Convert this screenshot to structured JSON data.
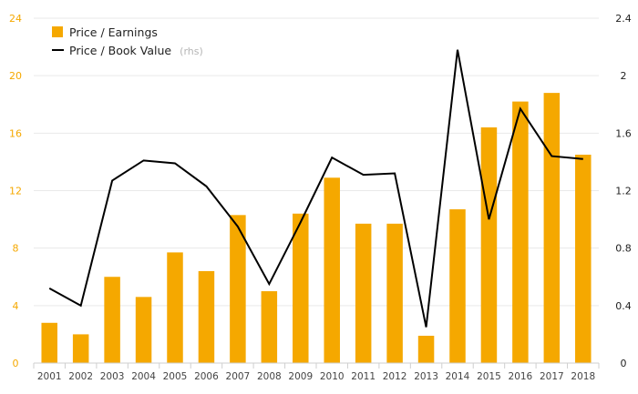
{
  "chart_data": {
    "type": "bar",
    "categories": [
      "2001",
      "2002",
      "2003",
      "2004",
      "2005",
      "2006",
      "2007",
      "2008",
      "2009",
      "2010",
      "2011",
      "2012",
      "2013",
      "2014",
      "2015",
      "2016",
      "2017",
      "2018"
    ],
    "series": [
      {
        "name": "Price / Earnings",
        "type": "bar",
        "axis": "left",
        "color": "#f5a800",
        "values": [
          2.8,
          2.0,
          6.0,
          4.6,
          7.7,
          6.4,
          10.3,
          5.0,
          10.4,
          12.9,
          9.7,
          9.7,
          1.9,
          10.7,
          16.4,
          18.2,
          18.8,
          14.5
        ]
      },
      {
        "name": "Price / Book Value",
        "name_suffix": "(rhs)",
        "type": "line",
        "axis": "right",
        "color": "#000000",
        "values": [
          0.52,
          0.4,
          1.27,
          1.41,
          1.39,
          1.23,
          0.95,
          0.55,
          0.98,
          1.43,
          1.31,
          1.32,
          0.25,
          2.18,
          1.0,
          1.77,
          1.44,
          1.42
        ]
      }
    ],
    "y_left": {
      "lim": [
        0,
        24
      ],
      "ticks": [
        "0",
        "4",
        "8",
        "12",
        "16",
        "20",
        "24"
      ]
    },
    "y_right": {
      "lim": [
        0,
        2.4
      ],
      "ticks": [
        "0",
        "0.4",
        "0.8",
        "1.2",
        "1.6",
        "2",
        "2.4"
      ]
    },
    "grid": true,
    "legend_position": "top-left"
  }
}
